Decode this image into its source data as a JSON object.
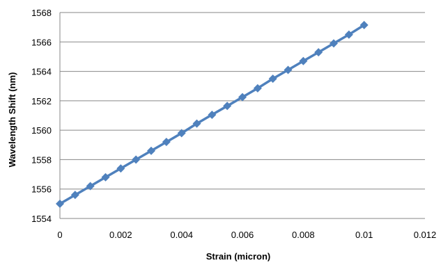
{
  "chart_data": {
    "type": "line",
    "title": "",
    "xlabel": "Strain (micron)",
    "ylabel": "Wavelength Shift (nm)",
    "xlim": [
      0,
      0.012
    ],
    "ylim": [
      1554,
      1568
    ],
    "x_ticks": [
      "0",
      "0.002",
      "0.004",
      "0.006",
      "0.008",
      "0.01",
      "0.012"
    ],
    "y_ticks": [
      "1554",
      "1556",
      "1558",
      "1560",
      "1562",
      "1564",
      "1566",
      "1568"
    ],
    "x_tick_values": [
      0,
      0.002,
      0.004,
      0.006,
      0.008,
      0.01,
      0.012
    ],
    "y_tick_values": [
      1554,
      1556,
      1558,
      1560,
      1562,
      1564,
      1566,
      1568
    ],
    "grid": "horizontal",
    "legend": "none",
    "series": [
      {
        "color": "#4F81BD",
        "marker": "diamond",
        "x": [
          0,
          0.0005,
          0.001,
          0.0015,
          0.002,
          0.0025,
          0.003,
          0.0035,
          0.004,
          0.0045,
          0.005,
          0.0055,
          0.006,
          0.0065,
          0.007,
          0.0075,
          0.008,
          0.0085,
          0.009,
          0.0095,
          0.01
        ],
        "y": [
          1555.0,
          1555.6,
          1556.2,
          1556.8,
          1557.4,
          1558.0,
          1558.6,
          1559.2,
          1559.8,
          1560.45,
          1561.05,
          1561.65,
          1562.25,
          1562.85,
          1563.5,
          1564.1,
          1564.7,
          1565.3,
          1565.9,
          1566.5,
          1567.15
        ]
      }
    ]
  }
}
